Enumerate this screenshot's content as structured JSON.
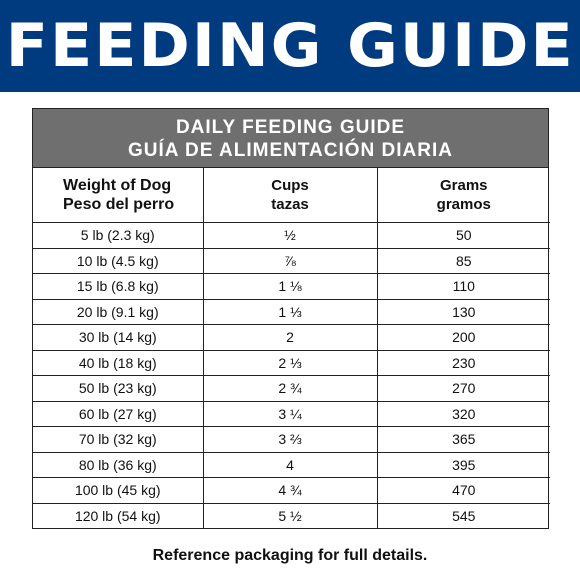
{
  "banner": {
    "title": "FEEDING GUIDE"
  },
  "guide": {
    "title_en": "DAILY FEEDING GUIDE",
    "title_es": "GUÍA DE ALIMENTACIÓN DIARIA",
    "columns": {
      "weight": {
        "en": "Weight of Dog",
        "es": "Peso del perro"
      },
      "cups": {
        "en": "Cups",
        "es": "tazas"
      },
      "grams": {
        "en": "Grams",
        "es": "gramos"
      }
    },
    "rows": [
      {
        "weight": "5 lb (2.3 kg)",
        "cups": "½",
        "grams": "50"
      },
      {
        "weight": "10 lb (4.5 kg)",
        "cups": "⅞",
        "grams": "85"
      },
      {
        "weight": "15 lb (6.8 kg)",
        "cups": "1 ⅛",
        "grams": "110"
      },
      {
        "weight": "20 lb (9.1 kg)",
        "cups": "1 ⅓",
        "grams": "130"
      },
      {
        "weight": "30 lb (14 kg)",
        "cups": "2",
        "grams": "200"
      },
      {
        "weight": "40 lb (18 kg)",
        "cups": "2 ⅓",
        "grams": "230"
      },
      {
        "weight": "50 lb (23 kg)",
        "cups": "2 ¾",
        "grams": "270"
      },
      {
        "weight": "60 lb (27 kg)",
        "cups": "3 ¼",
        "grams": "320"
      },
      {
        "weight": "70 lb (32 kg)",
        "cups": "3 ⅔",
        "grams": "365"
      },
      {
        "weight": "80 lb (36 kg)",
        "cups": "4",
        "grams": "395"
      },
      {
        "weight": "100 lb (45 kg)",
        "cups": "4 ¾",
        "grams": "470"
      },
      {
        "weight": "120 lb (54 kg)",
        "cups": "5 ½",
        "grams": "545"
      }
    ]
  },
  "footer": {
    "note": "Reference packaging for full details."
  },
  "colors": {
    "banner_bg": "#003b7f",
    "header_bg": "#6f6f6f",
    "text": "#111111"
  }
}
